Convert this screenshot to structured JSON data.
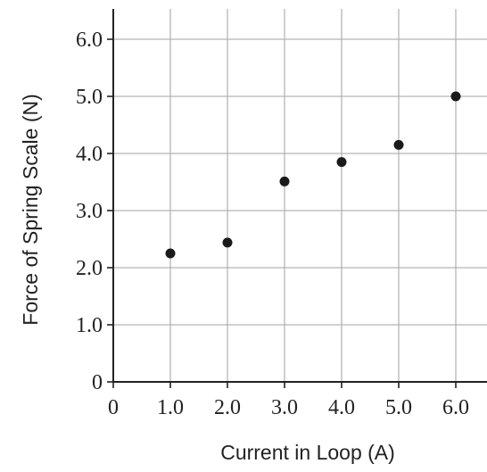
{
  "chart_data": {
    "type": "scatter",
    "title": "",
    "xlabel": "Current in Loop (A)",
    "ylabel": "Force of Spring Scale (N)",
    "xlim": [
      0,
      6.5
    ],
    "ylim": [
      0,
      6.5
    ],
    "grid": true,
    "x_ticks": [
      "0",
      "1.0",
      "2.0",
      "3.0",
      "4.0",
      "5.0",
      "6.0"
    ],
    "y_ticks": [
      "0",
      "1.0",
      "2.0",
      "3.0",
      "4.0",
      "5.0",
      "6.0"
    ],
    "series": [
      {
        "color": "#1a1a1a",
        "points": [
          {
            "x": 1.0,
            "y": 2.25
          },
          {
            "x": 2.0,
            "y": 2.44
          },
          {
            "x": 3.0,
            "y": 3.51
          },
          {
            "x": 4.0,
            "y": 3.85
          },
          {
            "x": 5.0,
            "y": 4.15
          },
          {
            "x": 6.0,
            "y": 5.0
          }
        ]
      }
    ]
  }
}
